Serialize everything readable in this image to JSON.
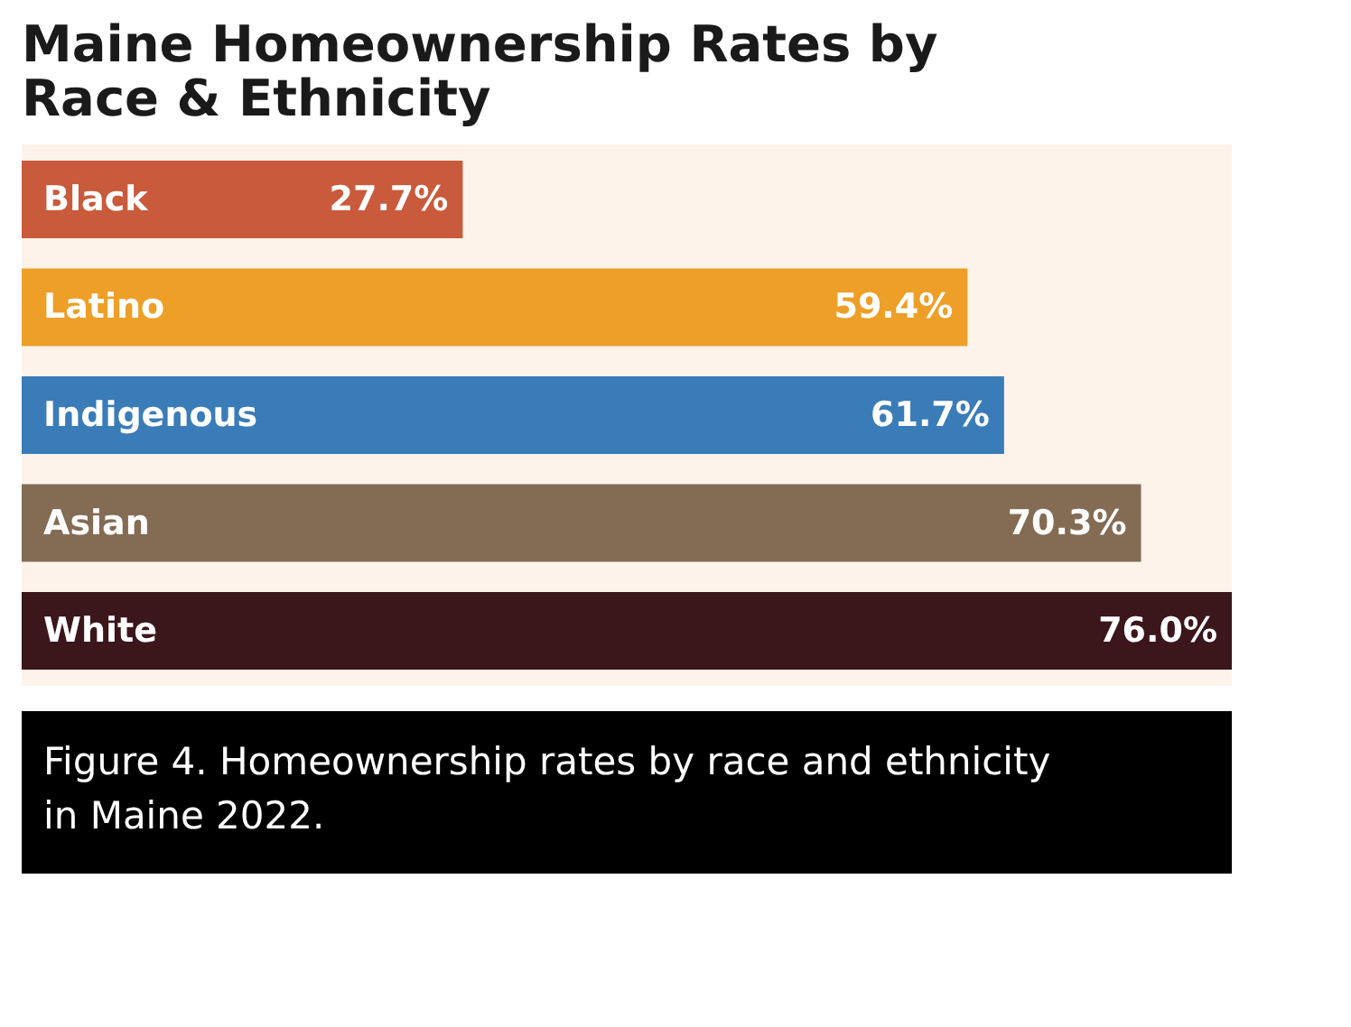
{
  "chart_data": {
    "type": "bar",
    "orientation": "horizontal",
    "title": "Maine Homeownership Rates by Race & Ethnicity",
    "categories": [
      "Black",
      "Latino",
      "Indigenous",
      "Asian",
      "White"
    ],
    "values": [
      27.7,
      59.4,
      61.7,
      70.3,
      76.0
    ],
    "value_labels": [
      "27.7%",
      "59.4%",
      "61.7%",
      "70.3%",
      "76.0%"
    ],
    "colors": [
      "#c95a3b",
      "#ee9f27",
      "#3a7cb8",
      "#846b54",
      "#3b161b"
    ],
    "annotations": [
      "Figure 4. Homeownership rates by race and ethnicity in Maine 2022."
    ]
  }
}
